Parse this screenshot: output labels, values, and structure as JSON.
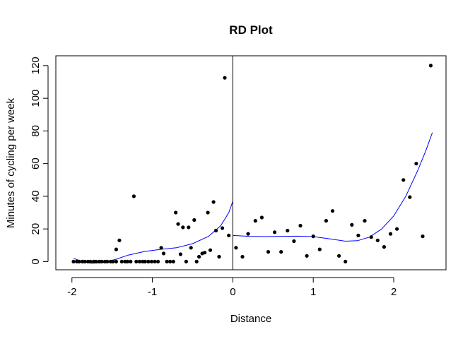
{
  "chart_data": {
    "type": "scatter",
    "title": "RD Plot",
    "xlabel": "Distance",
    "ylabel": "Minutes of cycling per week",
    "xlim": [
      -2.2,
      2.65
    ],
    "ylim": [
      -5,
      126
    ],
    "x_ticks": [
      -2,
      -1,
      0,
      1,
      2
    ],
    "x_tick_labels": [
      "-2",
      "-1",
      "0",
      "1",
      "2"
    ],
    "y_ticks": [
      0,
      20,
      40,
      60,
      80,
      100,
      120
    ],
    "y_tick_labels": [
      "0",
      "20",
      "40",
      "60",
      "80",
      "100",
      "120"
    ],
    "cutoff": 0,
    "grid": false,
    "colors": {
      "points": "#000000",
      "fit": "#0000ff",
      "axes": "#000000"
    },
    "points": [
      {
        "x": -1.98,
        "y": 0
      },
      {
        "x": -1.94,
        "y": 0
      },
      {
        "x": -1.91,
        "y": 0
      },
      {
        "x": -1.87,
        "y": 0
      },
      {
        "x": -1.84,
        "y": 0
      },
      {
        "x": -1.8,
        "y": 0
      },
      {
        "x": -1.77,
        "y": 0
      },
      {
        "x": -1.73,
        "y": 0
      },
      {
        "x": -1.7,
        "y": 0
      },
      {
        "x": -1.66,
        "y": 0
      },
      {
        "x": -1.63,
        "y": 0
      },
      {
        "x": -1.59,
        "y": 0
      },
      {
        "x": -1.56,
        "y": 0
      },
      {
        "x": -1.52,
        "y": 0
      },
      {
        "x": -1.49,
        "y": 0
      },
      {
        "x": -1.45,
        "y": 0
      },
      {
        "x": -1.45,
        "y": 7.5
      },
      {
        "x": -1.41,
        "y": 13
      },
      {
        "x": -1.38,
        "y": 0
      },
      {
        "x": -1.34,
        "y": 0
      },
      {
        "x": -1.31,
        "y": 0
      },
      {
        "x": -1.27,
        "y": 0
      },
      {
        "x": -1.23,
        "y": 40
      },
      {
        "x": -1.2,
        "y": 0
      },
      {
        "x": -1.16,
        "y": 0
      },
      {
        "x": -1.12,
        "y": 0
      },
      {
        "x": -1.09,
        "y": 0
      },
      {
        "x": -1.05,
        "y": 0
      },
      {
        "x": -1.01,
        "y": 0
      },
      {
        "x": -0.97,
        "y": 0
      },
      {
        "x": -0.93,
        "y": 0
      },
      {
        "x": -0.89,
        "y": 8.5
      },
      {
        "x": -0.86,
        "y": 5
      },
      {
        "x": -0.82,
        "y": 0
      },
      {
        "x": -0.78,
        "y": 0
      },
      {
        "x": -0.74,
        "y": 0
      },
      {
        "x": -0.71,
        "y": 30
      },
      {
        "x": -0.68,
        "y": 23
      },
      {
        "x": -0.65,
        "y": 4.5
      },
      {
        "x": -0.62,
        "y": 21
      },
      {
        "x": -0.58,
        "y": 0
      },
      {
        "x": -0.55,
        "y": 21
      },
      {
        "x": -0.52,
        "y": 8.5
      },
      {
        "x": -0.48,
        "y": 25.5
      },
      {
        "x": -0.45,
        "y": 0
      },
      {
        "x": -0.42,
        "y": 3
      },
      {
        "x": -0.38,
        "y": 5
      },
      {
        "x": -0.35,
        "y": 5.5
      },
      {
        "x": -0.31,
        "y": 30
      },
      {
        "x": -0.28,
        "y": 7
      },
      {
        "x": -0.24,
        "y": 36.5
      },
      {
        "x": -0.21,
        "y": 19
      },
      {
        "x": -0.17,
        "y": 3
      },
      {
        "x": -0.13,
        "y": 20.5
      },
      {
        "x": -0.1,
        "y": 112.5
      },
      {
        "x": -0.05,
        "y": 16
      },
      {
        "x": 0.04,
        "y": 8.5
      },
      {
        "x": 0.12,
        "y": 3
      },
      {
        "x": 0.19,
        "y": 17
      },
      {
        "x": 0.28,
        "y": 25
      },
      {
        "x": 0.36,
        "y": 27
      },
      {
        "x": 0.44,
        "y": 6
      },
      {
        "x": 0.52,
        "y": 18
      },
      {
        "x": 0.6,
        "y": 6
      },
      {
        "x": 0.68,
        "y": 19
      },
      {
        "x": 0.76,
        "y": 12.5
      },
      {
        "x": 0.84,
        "y": 22
      },
      {
        "x": 0.92,
        "y": 3.5
      },
      {
        "x": 1.0,
        "y": 15.5
      },
      {
        "x": 1.08,
        "y": 7.5
      },
      {
        "x": 1.16,
        "y": 25
      },
      {
        "x": 1.24,
        "y": 31
      },
      {
        "x": 1.32,
        "y": 3.5
      },
      {
        "x": 1.4,
        "y": 0
      },
      {
        "x": 1.48,
        "y": 22.5
      },
      {
        "x": 1.56,
        "y": 16
      },
      {
        "x": 1.64,
        "y": 25
      },
      {
        "x": 1.72,
        "y": 15
      },
      {
        "x": 1.8,
        "y": 13
      },
      {
        "x": 1.88,
        "y": 9
      },
      {
        "x": 1.96,
        "y": 17
      },
      {
        "x": 2.04,
        "y": 20
      },
      {
        "x": 2.12,
        "y": 50
      },
      {
        "x": 2.2,
        "y": 39.5
      },
      {
        "x": 2.28,
        "y": 60
      },
      {
        "x": 2.36,
        "y": 15.5
      },
      {
        "x": 2.46,
        "y": 120
      }
    ],
    "fit_left": [
      {
        "x": -1.98,
        "y": 2
      },
      {
        "x": -1.85,
        "y": -0.3
      },
      {
        "x": -1.75,
        "y": -1
      },
      {
        "x": -1.6,
        "y": -0.6
      },
      {
        "x": -1.45,
        "y": 1.5
      },
      {
        "x": -1.3,
        "y": 4
      },
      {
        "x": -1.1,
        "y": 6.2
      },
      {
        "x": -0.9,
        "y": 7.5
      },
      {
        "x": -0.7,
        "y": 8.5
      },
      {
        "x": -0.5,
        "y": 11
      },
      {
        "x": -0.3,
        "y": 15.5
      },
      {
        "x": -0.15,
        "y": 22
      },
      {
        "x": -0.05,
        "y": 30
      },
      {
        "x": 0,
        "y": 37
      }
    ],
    "fit_right": [
      {
        "x": 0,
        "y": 16
      },
      {
        "x": 0.2,
        "y": 15.5
      },
      {
        "x": 0.4,
        "y": 15.3
      },
      {
        "x": 0.6,
        "y": 15.5
      },
      {
        "x": 0.8,
        "y": 15.6
      },
      {
        "x": 1.0,
        "y": 15.3
      },
      {
        "x": 1.2,
        "y": 14
      },
      {
        "x": 1.4,
        "y": 12.5
      },
      {
        "x": 1.55,
        "y": 12.8
      },
      {
        "x": 1.7,
        "y": 15
      },
      {
        "x": 1.85,
        "y": 20
      },
      {
        "x": 2.0,
        "y": 28
      },
      {
        "x": 2.15,
        "y": 40
      },
      {
        "x": 2.3,
        "y": 56
      },
      {
        "x": 2.4,
        "y": 68
      },
      {
        "x": 2.48,
        "y": 79
      }
    ]
  }
}
